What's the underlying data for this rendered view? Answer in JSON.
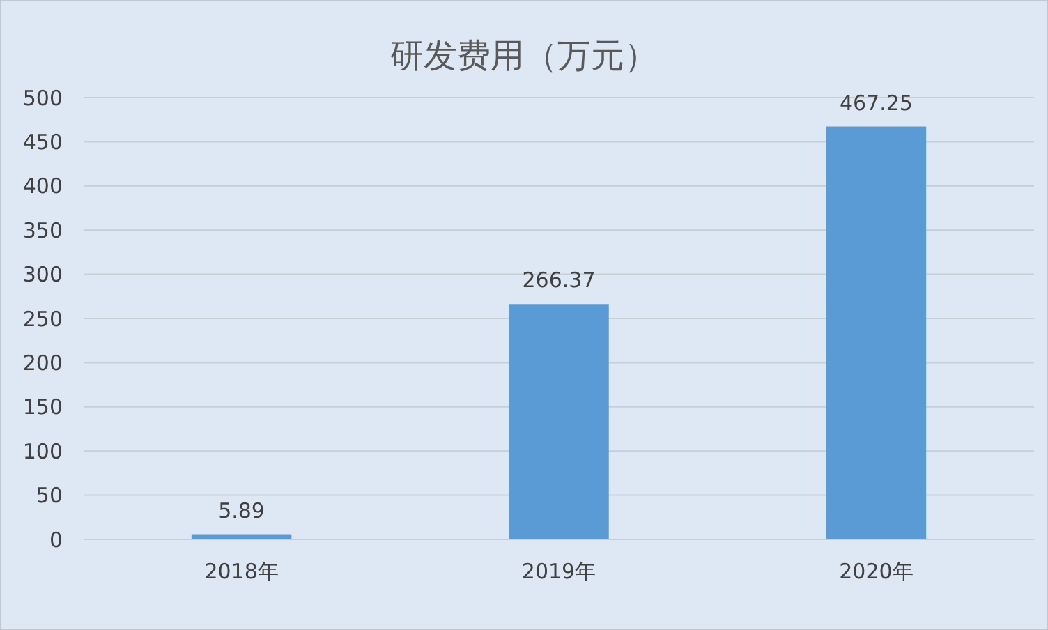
{
  "chart_data": {
    "type": "bar",
    "title": "研发费用（万元）",
    "categories": [
      "2018年",
      "2019年",
      "2020年"
    ],
    "values": [
      5.89,
      266.37,
      467.25
    ],
    "color": "#5b9bd5",
    "ylim": [
      0,
      500
    ],
    "yticks": [
      0,
      50,
      100,
      150,
      200,
      250,
      300,
      350,
      400,
      450,
      500
    ],
    "grid": true,
    "data_labels": true
  }
}
